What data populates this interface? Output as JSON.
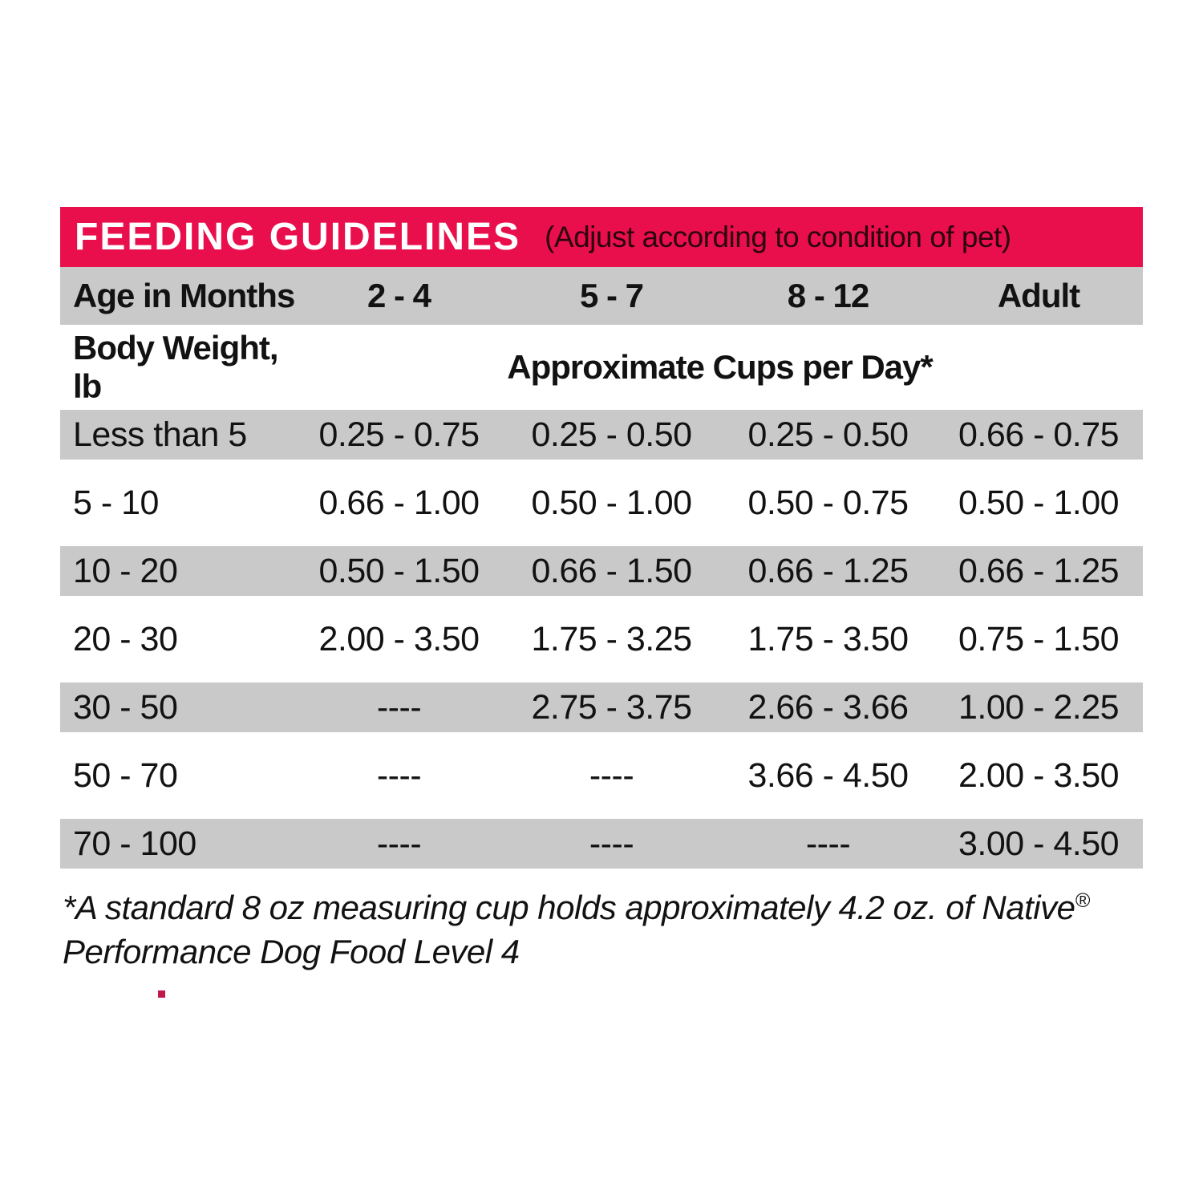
{
  "header": {
    "title": "FEEDING GUIDELINES",
    "subtitle": "(Adjust according to condition of pet)",
    "bar_color": "#E90F4C",
    "title_color": "#FFFFFF",
    "subtitle_color": "#2B040E"
  },
  "age_header": {
    "label": "Age in Months",
    "columns": [
      "2 - 4",
      "5 - 7",
      "8 - 12",
      "Adult"
    ]
  },
  "subheader": {
    "weight_label": "Body Weight, lb",
    "cups_label": "Approximate Cups per Day*"
  },
  "rows": [
    {
      "weight": "Less than 5",
      "values": [
        "0.25 - 0.75",
        "0.25 - 0.50",
        "0.25 - 0.50",
        "0.66 - 0.75"
      ]
    },
    {
      "weight": "5 - 10",
      "values": [
        "0.66 - 1.00",
        "0.50 - 1.00",
        "0.50 - 0.75",
        "0.50 - 1.00"
      ]
    },
    {
      "weight": "10 - 20",
      "values": [
        "0.50 - 1.50",
        "0.66 - 1.50",
        "0.66 - 1.25",
        "0.66 - 1.25"
      ]
    },
    {
      "weight": "20 - 30",
      "values": [
        "2.00 - 3.50",
        "1.75 - 3.25",
        "1.75 - 3.50",
        "0.75 - 1.50"
      ]
    },
    {
      "weight": "30 - 50",
      "values": [
        "----",
        "2.75 - 3.75",
        "2.66 - 3.66",
        "1.00 - 2.25"
      ]
    },
    {
      "weight": "50 - 70",
      "values": [
        "----",
        "----",
        "3.66 - 4.50",
        "2.00 - 3.50"
      ]
    },
    {
      "weight": "70 - 100",
      "values": [
        "----",
        "----",
        "----",
        "3.00 - 4.50"
      ]
    }
  ],
  "footnote": {
    "line1": "*A standard 8 oz measuring cup holds approximately 4.2 oz. of Native",
    "registered": "®",
    "line2": "Performance Dog Food Level 4"
  },
  "colors": {
    "row_band": "#C9C9C9",
    "text": "#121212",
    "dot": "#C11847"
  }
}
